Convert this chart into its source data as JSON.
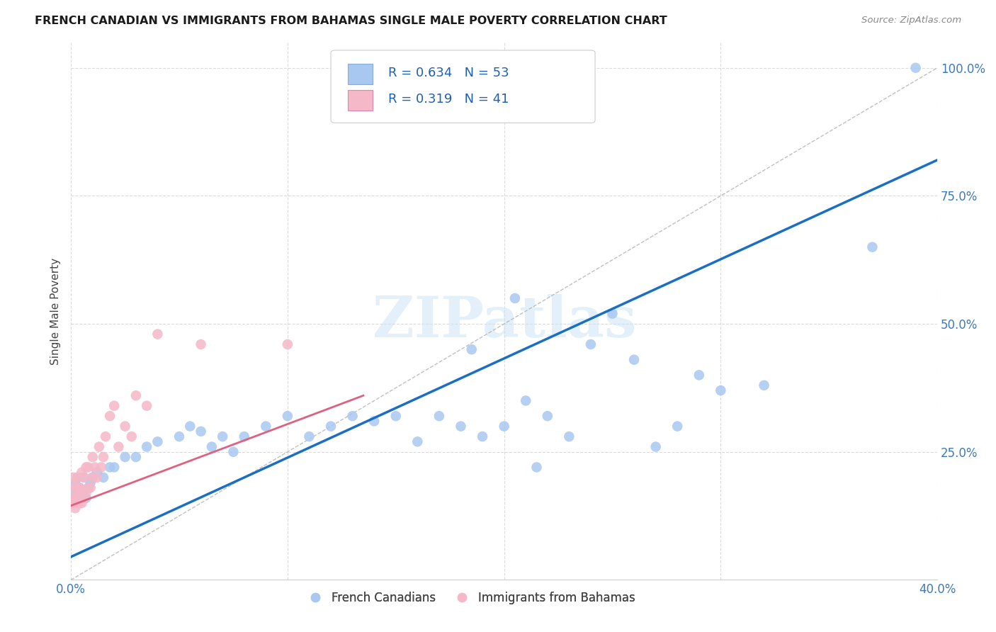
{
  "title": "FRENCH CANADIAN VS IMMIGRANTS FROM BAHAMAS SINGLE MALE POVERTY CORRELATION CHART",
  "source": "Source: ZipAtlas.com",
  "ylabel": "Single Male Poverty",
  "xlim": [
    0.0,
    0.4
  ],
  "ylim": [
    0.0,
    1.05
  ],
  "x_ticks": [
    0.0,
    0.1,
    0.2,
    0.3,
    0.4
  ],
  "x_tick_labels": [
    "0.0%",
    "",
    "",
    "",
    "40.0%"
  ],
  "y_ticks": [
    0.25,
    0.5,
    0.75,
    1.0
  ],
  "y_tick_labels": [
    "25.0%",
    "50.0%",
    "75.0%",
    "100.0%"
  ],
  "blue_R": 0.634,
  "blue_N": 53,
  "pink_R": 0.319,
  "pink_N": 41,
  "blue_color": "#a8c8f0",
  "blue_line_color": "#1a6fc4",
  "pink_color": "#f5b8c8",
  "pink_line_color": "#e06080",
  "blue_scatter_x": [
    0.001,
    0.002,
    0.003,
    0.004,
    0.005,
    0.006,
    0.007,
    0.008,
    0.009,
    0.01,
    0.012,
    0.015,
    0.018,
    0.02,
    0.025,
    0.03,
    0.035,
    0.04,
    0.05,
    0.055,
    0.06,
    0.065,
    0.07,
    0.075,
    0.08,
    0.09,
    0.1,
    0.11,
    0.12,
    0.13,
    0.14,
    0.15,
    0.16,
    0.17,
    0.18,
    0.185,
    0.19,
    0.2,
    0.205,
    0.21,
    0.215,
    0.22,
    0.23,
    0.24,
    0.25,
    0.26,
    0.27,
    0.28,
    0.29,
    0.3,
    0.32,
    0.37,
    0.39
  ],
  "blue_scatter_y": [
    0.17,
    0.19,
    0.2,
    0.18,
    0.17,
    0.2,
    0.16,
    0.18,
    0.19,
    0.2,
    0.21,
    0.2,
    0.22,
    0.22,
    0.24,
    0.24,
    0.26,
    0.27,
    0.28,
    0.3,
    0.29,
    0.26,
    0.28,
    0.25,
    0.28,
    0.3,
    0.32,
    0.28,
    0.3,
    0.32,
    0.31,
    0.32,
    0.27,
    0.32,
    0.3,
    0.45,
    0.28,
    0.3,
    0.55,
    0.35,
    0.22,
    0.32,
    0.28,
    0.46,
    0.52,
    0.43,
    0.26,
    0.3,
    0.4,
    0.37,
    0.38,
    0.65,
    1.0
  ],
  "pink_scatter_x": [
    0.001,
    0.001,
    0.001,
    0.002,
    0.002,
    0.002,
    0.003,
    0.003,
    0.003,
    0.003,
    0.004,
    0.004,
    0.004,
    0.005,
    0.005,
    0.005,
    0.006,
    0.006,
    0.007,
    0.007,
    0.008,
    0.008,
    0.009,
    0.01,
    0.01,
    0.011,
    0.012,
    0.013,
    0.014,
    0.015,
    0.016,
    0.018,
    0.02,
    0.022,
    0.025,
    0.028,
    0.03,
    0.035,
    0.04,
    0.06,
    0.1
  ],
  "pink_scatter_y": [
    0.15,
    0.16,
    0.2,
    0.14,
    0.16,
    0.18,
    0.15,
    0.16,
    0.18,
    0.2,
    0.15,
    0.17,
    0.18,
    0.15,
    0.17,
    0.21,
    0.16,
    0.2,
    0.17,
    0.22,
    0.18,
    0.22,
    0.18,
    0.2,
    0.24,
    0.22,
    0.2,
    0.26,
    0.22,
    0.24,
    0.28,
    0.32,
    0.34,
    0.26,
    0.3,
    0.28,
    0.36,
    0.34,
    0.48,
    0.46,
    0.46
  ],
  "blue_line_x": [
    0.0,
    0.4
  ],
  "blue_line_y": [
    0.045,
    0.82
  ],
  "pink_line_x": [
    0.0,
    0.135
  ],
  "pink_line_y": [
    0.145,
    0.36
  ],
  "diag_line_x": [
    0.0,
    0.4
  ],
  "diag_line_y": [
    0.0,
    1.0
  ],
  "watermark_text": "ZIPatlas",
  "legend_labels": [
    "French Canadians",
    "Immigrants from Bahamas"
  ],
  "background_color": "#ffffff",
  "grid_color": "#d8d8d8"
}
